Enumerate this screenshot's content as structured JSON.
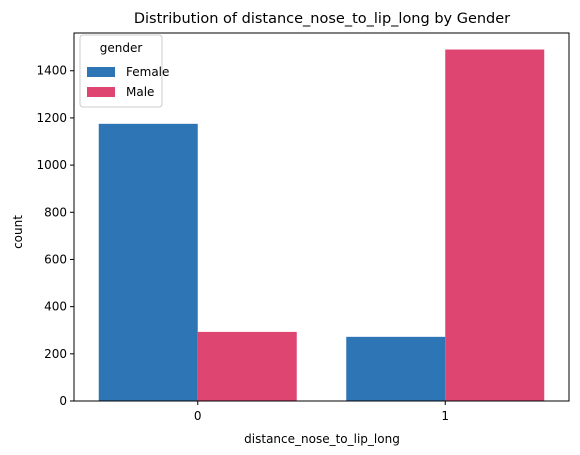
{
  "chart_data": {
    "type": "bar",
    "title": "Distribution of distance_nose_to_lip_long by Gender",
    "xlabel": "distance_nose_to_lip_long",
    "ylabel": "count",
    "categories": [
      "0",
      "1"
    ],
    "ylim": [
      0,
      1560
    ],
    "yticks": [
      0,
      200,
      400,
      600,
      800,
      1000,
      1200,
      1400
    ],
    "grid": false,
    "legend": {
      "title": "gender",
      "placement": "top-left"
    },
    "series": [
      {
        "name": "Female",
        "color": "#2e75b6",
        "values": [
          1175,
          272
        ]
      },
      {
        "name": "Male",
        "color": "#de4570",
        "values": [
          293,
          1490
        ]
      }
    ]
  }
}
